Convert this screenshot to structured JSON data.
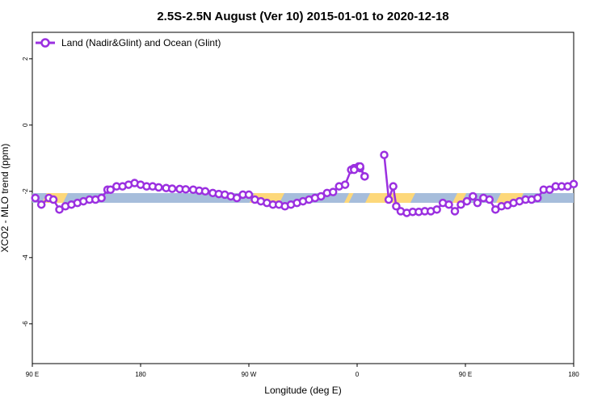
{
  "chart_data": {
    "type": "line",
    "title": "2.5S-2.5N August (Ver 10)   2015-01-01 to 2020-12-18",
    "xlabel": "Longitude (deg E)",
    "ylabel": "XCO2 - MLO trend (ppm)",
    "xlim": [
      90,
      450
    ],
    "ylim": [
      -7.2,
      2.8
    ],
    "x_ticks": [
      {
        "value": 90,
        "label": "90 E"
      },
      {
        "value": 162,
        "label": "180"
      },
      {
        "value": 234,
        "label": "90 W"
      },
      {
        "value": 306,
        "label": "0"
      },
      {
        "value": 378,
        "label": "90 E"
      },
      {
        "value": 450,
        "label": "180"
      }
    ],
    "y_ticks": [
      {
        "value": 2,
        "label": "2"
      },
      {
        "value": 0,
        "label": "0"
      },
      {
        "value": -2,
        "label": "-2"
      },
      {
        "value": -4,
        "label": "-4"
      },
      {
        "value": -6,
        "label": "-6"
      }
    ],
    "band": {
      "y": -2.2,
      "color": "#a6bddb"
    },
    "land_segments": [
      {
        "x0": 98,
        "x1": 112
      },
      {
        "x0": 236,
        "x1": 256
      },
      {
        "x0": 299,
        "x1": 302
      },
      {
        "x0": 313,
        "x1": 343
      },
      {
        "x0": 371,
        "x1": 377
      },
      {
        "x0": 400,
        "x1": 415
      }
    ],
    "land_color": "#fdd87a",
    "series": [
      {
        "name": "Land (Nadir&Glint) and Ocean (Glint)",
        "color": "#9b30e0",
        "segments": [
          {
            "x": [
              92,
              96,
              101,
              104,
              108,
              112,
              116,
              120,
              124,
              128,
              132,
              136,
              140,
              142,
              146,
              150,
              154,
              158,
              162,
              166,
              170,
              174,
              179,
              183,
              188,
              192,
              197,
              201,
              205,
              210,
              214,
              218,
              222,
              226,
              230,
              234,
              238,
              242,
              246,
              250,
              254,
              258,
              262,
              266,
              270,
              274,
              278,
              282,
              286,
              290,
              294,
              298,
              302,
              304,
              307,
              308,
              311
            ],
            "y": [
              -2.2,
              -2.4,
              -2.2,
              -2.25,
              -2.55,
              -2.45,
              -2.4,
              -2.35,
              -2.3,
              -2.25,
              -2.25,
              -2.2,
              -1.95,
              -1.95,
              -1.85,
              -1.85,
              -1.8,
              -1.75,
              -1.8,
              -1.85,
              -1.85,
              -1.88,
              -1.9,
              -1.92,
              -1.93,
              -1.94,
              -1.95,
              -1.98,
              -2.0,
              -2.05,
              -2.08,
              -2.1,
              -2.15,
              -2.2,
              -2.1,
              -2.1,
              -2.25,
              -2.3,
              -2.35,
              -2.4,
              -2.4,
              -2.45,
              -2.4,
              -2.35,
              -2.3,
              -2.25,
              -2.2,
              -2.15,
              -2.05,
              -2.02,
              -1.85,
              -1.8,
              -1.35,
              -1.3,
              -1.25,
              -1.3,
              -1.55
            ]
          },
          {
            "x": [
              304,
              308,
              311
            ],
            "y": [
              -1.35,
              -1.25,
              -1.55
            ]
          },
          {
            "x": [
              324,
              327,
              330,
              332,
              335,
              339,
              343,
              347,
              351,
              355,
              359,
              363,
              367,
              371,
              375,
              379,
              383,
              386,
              390,
              394,
              398,
              402,
              406,
              410,
              414,
              418,
              422,
              426,
              430,
              434,
              438,
              442,
              446,
              450
            ],
            "y": [
              -0.9,
              -2.25,
              -1.85,
              -2.45,
              -2.6,
              -2.65,
              -2.62,
              -2.62,
              -2.6,
              -2.6,
              -2.55,
              -2.35,
              -2.4,
              -2.6,
              -2.4,
              -2.3,
              -2.15,
              -2.35,
              -2.2,
              -2.25,
              -2.55,
              -2.45,
              -2.42,
              -2.35,
              -2.3,
              -2.25,
              -2.25,
              -2.2,
              -1.95,
              -1.95,
              -1.85,
              -1.85,
              -1.85,
              -1.78
            ]
          }
        ]
      }
    ],
    "legend": {
      "position": "top-left"
    },
    "grid": false
  }
}
